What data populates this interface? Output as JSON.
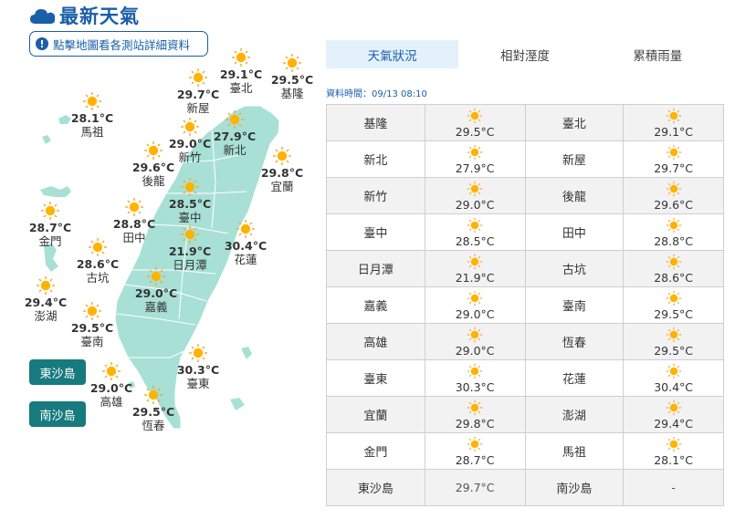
{
  "header": {
    "title": "最新天氣",
    "icon": "cloud-icon"
  },
  "map_button": {
    "label": "點擊地圖看各測站詳細資料",
    "icon": "info-icon"
  },
  "islands": {
    "dongsha_label": "東沙島",
    "nansha_label": "南沙島"
  },
  "map_stations": [
    {
      "id": "taipei",
      "name": "臺北",
      "temp": "29.1°C"
    },
    {
      "id": "keelung",
      "name": "基隆",
      "temp": "29.5°C"
    },
    {
      "id": "xinwu",
      "name": "新屋",
      "temp": "29.7°C"
    },
    {
      "id": "newtaipei",
      "name": "新北",
      "temp": "27.9°C"
    },
    {
      "id": "matsu",
      "name": "馬祖",
      "temp": "28.1°C"
    },
    {
      "id": "hsinchu",
      "name": "新竹",
      "temp": "29.0°C"
    },
    {
      "id": "houlong",
      "name": "後龍",
      "temp": "29.6°C"
    },
    {
      "id": "yilan",
      "name": "宜蘭",
      "temp": "29.8°C"
    },
    {
      "id": "taichung",
      "name": "臺中",
      "temp": "28.5°C"
    },
    {
      "id": "tianzhong",
      "name": "田中",
      "temp": "28.8°C"
    },
    {
      "id": "kinmen",
      "name": "金門",
      "temp": "28.7°C"
    },
    {
      "id": "sunmoonlake",
      "name": "日月潭",
      "temp": "21.9°C"
    },
    {
      "id": "hualien",
      "name": "花蓮",
      "temp": "30.4°C"
    },
    {
      "id": "gukeng",
      "name": "古坑",
      "temp": "28.6°C"
    },
    {
      "id": "penghu",
      "name": "澎湖",
      "temp": "29.4°C"
    },
    {
      "id": "chiayi",
      "name": "嘉義",
      "temp": "29.0°C"
    },
    {
      "id": "tainan",
      "name": "臺南",
      "temp": "29.5°C"
    },
    {
      "id": "taitung",
      "name": "臺東",
      "temp": "30.3°C"
    },
    {
      "id": "kaohsiung",
      "name": "高雄",
      "temp": "29.0°C"
    },
    {
      "id": "hengchun",
      "name": "恆春",
      "temp": "29.5°C"
    }
  ],
  "tabs": [
    {
      "label": "天氣狀況",
      "active": true
    },
    {
      "label": "相對溼度",
      "active": false
    },
    {
      "label": "累積雨量",
      "active": false
    }
  ],
  "timestamp": "資料時間：09/13 08:10",
  "table_rows": [
    [
      {
        "name": "基隆",
        "temp": "29.5°C",
        "icon": "sun-icon"
      },
      {
        "name": "臺北",
        "temp": "29.1°C",
        "icon": "sun-icon"
      }
    ],
    [
      {
        "name": "新北",
        "temp": "27.9°C",
        "icon": "sun-icon"
      },
      {
        "name": "新屋",
        "temp": "29.7°C",
        "icon": "sun-icon"
      }
    ],
    [
      {
        "name": "新竹",
        "temp": "29.0°C",
        "icon": "sun-icon"
      },
      {
        "name": "後龍",
        "temp": "29.6°C",
        "icon": "sun-icon"
      }
    ],
    [
      {
        "name": "臺中",
        "temp": "28.5°C",
        "icon": "sun-icon"
      },
      {
        "name": "田中",
        "temp": "28.8°C",
        "icon": "sun-icon"
      }
    ],
    [
      {
        "name": "日月潭",
        "temp": "21.9°C",
        "icon": "sun-icon"
      },
      {
        "name": "古坑",
        "temp": "28.6°C",
        "icon": "sun-icon"
      }
    ],
    [
      {
        "name": "嘉義",
        "temp": "29.0°C",
        "icon": "sun-icon"
      },
      {
        "name": "臺南",
        "temp": "29.5°C",
        "icon": "sun-icon"
      }
    ],
    [
      {
        "name": "高雄",
        "temp": "29.0°C",
        "icon": "sun-icon"
      },
      {
        "name": "恆春",
        "temp": "29.5°C",
        "icon": "sun-icon"
      }
    ],
    [
      {
        "name": "臺東",
        "temp": "30.3°C",
        "icon": "sun-icon"
      },
      {
        "name": "花蓮",
        "temp": "30.4°C",
        "icon": "sun-icon"
      }
    ],
    [
      {
        "name": "宜蘭",
        "temp": "29.8°C",
        "icon": "sun-icon"
      },
      {
        "name": "澎湖",
        "temp": "29.4°C",
        "icon": "sun-icon"
      }
    ],
    [
      {
        "name": "金門",
        "temp": "28.7°C",
        "icon": "sun-icon"
      },
      {
        "name": "馬祖",
        "temp": "28.1°C",
        "icon": "sun-icon"
      }
    ],
    [
      {
        "name": "東沙島",
        "temp": "29.7°C",
        "icon": ""
      },
      {
        "name": "南沙島",
        "temp": "-",
        "icon": ""
      }
    ]
  ],
  "colors": {
    "accent": "#1a5fa8",
    "land": "#a8e0d6",
    "island_button": "#167a7e",
    "tab_active_bg": "#e3f1fb"
  }
}
